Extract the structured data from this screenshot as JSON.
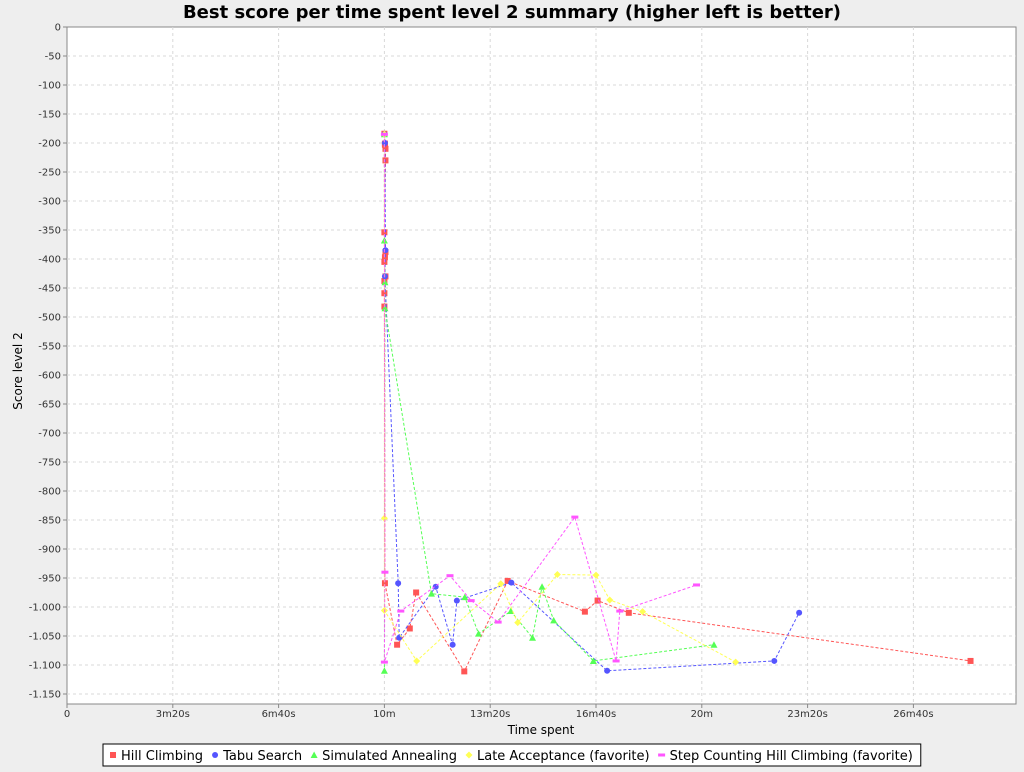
{
  "chart_data": {
    "type": "scatter",
    "title": "Best score per time spent level 2 summary (higher left is better)",
    "xlabel": "Time spent",
    "ylabel": "Score level 2",
    "xlim": [
      0,
      1800
    ],
    "ylim": [
      -1165,
      0
    ],
    "x_ticks": [
      {
        "value": 0,
        "label": "0"
      },
      {
        "value": 200,
        "label": "3m20s"
      },
      {
        "value": 400,
        "label": "6m40s"
      },
      {
        "value": 600,
        "label": "10m"
      },
      {
        "value": 800,
        "label": "13m20s"
      },
      {
        "value": 1000,
        "label": "16m40s"
      },
      {
        "value": 1200,
        "label": "20m"
      },
      {
        "value": 1400,
        "label": "23m20s"
      },
      {
        "value": 1600,
        "label": "26m40s"
      }
    ],
    "y_ticks": [
      {
        "value": 0,
        "label": "0"
      },
      {
        "value": -50,
        "label": "-50"
      },
      {
        "value": -100,
        "label": "-100"
      },
      {
        "value": -150,
        "label": "-150"
      },
      {
        "value": -200,
        "label": "-200"
      },
      {
        "value": -250,
        "label": "-250"
      },
      {
        "value": -300,
        "label": "-300"
      },
      {
        "value": -350,
        "label": "-350"
      },
      {
        "value": -400,
        "label": "-400"
      },
      {
        "value": -450,
        "label": "-450"
      },
      {
        "value": -500,
        "label": "-500"
      },
      {
        "value": -550,
        "label": "-550"
      },
      {
        "value": -600,
        "label": "-600"
      },
      {
        "value": -650,
        "label": "-650"
      },
      {
        "value": -700,
        "label": "-700"
      },
      {
        "value": -750,
        "label": "-750"
      },
      {
        "value": -800,
        "label": "-800"
      },
      {
        "value": -850,
        "label": "-850"
      },
      {
        "value": -900,
        "label": "-900"
      },
      {
        "value": -950,
        "label": "-950"
      },
      {
        "value": -1000,
        "label": "-1.000"
      },
      {
        "value": -1050,
        "label": "-1.050"
      },
      {
        "value": -1100,
        "label": "-1.100"
      },
      {
        "value": -1150,
        "label": "-1.150"
      }
    ],
    "grid": true,
    "legend_position": "bottom",
    "series": [
      {
        "name": "Hill Climbing",
        "color": "#ff5555",
        "marker": "square",
        "points": [
          [
            600,
            -184
          ],
          [
            601,
            -201
          ],
          [
            601,
            -203
          ],
          [
            602,
            -210
          ],
          [
            602,
            -230
          ],
          [
            600,
            -354
          ],
          [
            602,
            -388
          ],
          [
            601,
            -397
          ],
          [
            600,
            -405
          ],
          [
            602,
            -430
          ],
          [
            600,
            -438
          ],
          [
            600,
            -459
          ],
          [
            600,
            -482
          ],
          [
            601,
            -959
          ],
          [
            624,
            -1065
          ],
          [
            648,
            -1037
          ],
          [
            660,
            -975
          ],
          [
            751,
            -1111
          ],
          [
            833,
            -955
          ],
          [
            979,
            -1008
          ],
          [
            1003,
            -989
          ],
          [
            1062,
            -1010
          ],
          [
            1708,
            -1093
          ]
        ]
      },
      {
        "name": "Tabu Search",
        "color": "#5555ff",
        "marker": "circle",
        "points": [
          [
            600,
            -185
          ],
          [
            601,
            -200
          ],
          [
            602,
            -385
          ],
          [
            601,
            -430
          ],
          [
            626,
            -959
          ],
          [
            628,
            -1053
          ],
          [
            697,
            -965
          ],
          [
            729,
            -1065
          ],
          [
            737,
            -989
          ],
          [
            840,
            -958
          ],
          [
            1021,
            -1110
          ],
          [
            1337,
            -1093
          ],
          [
            1384,
            -1010
          ]
        ]
      },
      {
        "name": "Simulated Annealing",
        "color": "#55ff55",
        "marker": "triangle",
        "points": [
          [
            600,
            -185
          ],
          [
            600,
            -368
          ],
          [
            601,
            -440
          ],
          [
            600,
            -1110
          ],
          [
            601,
            -485
          ],
          [
            689,
            -977
          ],
          [
            752,
            -983
          ],
          [
            778,
            -1046
          ],
          [
            839,
            -1007
          ],
          [
            880,
            -1053
          ],
          [
            898,
            -965
          ],
          [
            920,
            -1023
          ],
          [
            995,
            -1093
          ],
          [
            1223,
            -1065
          ]
        ]
      },
      {
        "name": "Late Acceptance (favorite)",
        "color": "#ffff55",
        "marker": "diamond",
        "points": [
          [
            600,
            -185
          ],
          [
            600,
            -847
          ],
          [
            600,
            -1006
          ],
          [
            661,
            -1093
          ],
          [
            820,
            -960
          ],
          [
            852,
            -1027
          ],
          [
            927,
            -944
          ],
          [
            1000,
            -945
          ],
          [
            1026,
            -988
          ],
          [
            1088,
            -1008
          ],
          [
            1264,
            -1095
          ]
        ]
      },
      {
        "name": "Step Counting Hill Climbing (favorite)",
        "color": "#ff55ff",
        "marker": "rect",
        "points": [
          [
            600,
            -185
          ],
          [
            601,
            -940
          ],
          [
            600,
            -1095
          ],
          [
            631,
            -1007
          ],
          [
            724,
            -946
          ],
          [
            764,
            -989
          ],
          [
            815,
            -1026
          ],
          [
            960,
            -845
          ],
          [
            1038,
            -1093
          ],
          [
            1045,
            -1007
          ],
          [
            1190,
            -962
          ]
        ]
      }
    ]
  }
}
